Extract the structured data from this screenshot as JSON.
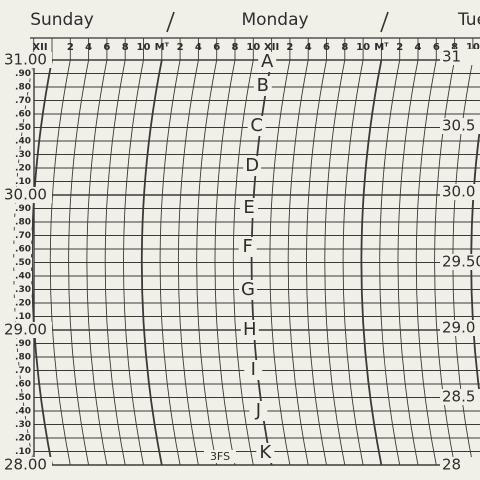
{
  "days": [
    "Sunday",
    "Monday",
    "Tue"
  ],
  "hours": [
    "XII",
    "2",
    "4",
    "6",
    "8",
    "10",
    "Mᵀ",
    "2",
    "4",
    "6",
    "8",
    "10",
    "XII",
    "2",
    "4",
    "6",
    "8",
    "10",
    "Mᵀ",
    "2",
    "4",
    "6",
    "8",
    "10"
  ],
  "pressure_left": [
    "31.00",
    ".90",
    ".80",
    ".70",
    ".60",
    ".50",
    ".40",
    ".30",
    ".20",
    ".10",
    "30.00",
    ".90",
    ".80",
    ".70",
    ".60",
    ".50",
    ".40",
    ".30",
    ".20",
    ".10",
    "29.00",
    ".90",
    ".80",
    ".70",
    ".60",
    ".50",
    ".40",
    ".30",
    ".20",
    ".10",
    "28.00"
  ],
  "pressure_right": [
    "31",
    "30.5",
    "30.0",
    "29.50",
    "29.0",
    "28.5",
    "28"
  ],
  "letters": [
    "A",
    "B",
    "C",
    "D",
    "E",
    "F",
    "G",
    "H",
    "I",
    "J",
    "K"
  ],
  "footer_code": "3FS"
}
